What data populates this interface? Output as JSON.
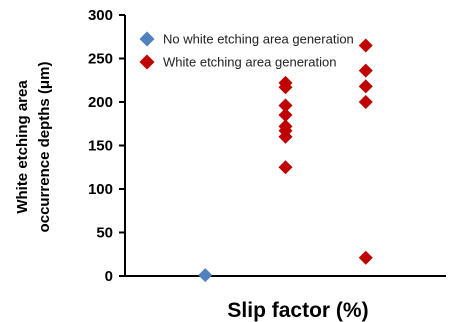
{
  "chart_data": {
    "type": "scatter",
    "title": "",
    "xlabel": "Slip factor (%)",
    "ylabel_lines": [
      "White etching area",
      "occurrence depths (μm)"
    ],
    "ylim": [
      0,
      300
    ],
    "yticks": [
      0,
      50,
      100,
      150,
      200,
      250,
      300
    ],
    "xlim": [
      0,
      4
    ],
    "x_ticks_labeled": false,
    "grid": false,
    "legend_position": "top-right",
    "series": [
      {
        "name": "No white etching area generation",
        "color": "#4f81bd",
        "marker": "diamond",
        "points": [
          {
            "x": 1,
            "y": 1
          }
        ]
      },
      {
        "name": "White etching area generation",
        "color": "#c00000",
        "marker": "diamond",
        "points": [
          {
            "x": 2,
            "y": 222
          },
          {
            "x": 2,
            "y": 217
          },
          {
            "x": 2,
            "y": 196
          },
          {
            "x": 2,
            "y": 185
          },
          {
            "x": 2,
            "y": 172
          },
          {
            "x": 2,
            "y": 167
          },
          {
            "x": 2,
            "y": 160
          },
          {
            "x": 2,
            "y": 125
          },
          {
            "x": 3,
            "y": 265
          },
          {
            "x": 3,
            "y": 236
          },
          {
            "x": 3,
            "y": 218
          },
          {
            "x": 3,
            "y": 200
          },
          {
            "x": 3,
            "y": 21
          }
        ]
      }
    ]
  }
}
